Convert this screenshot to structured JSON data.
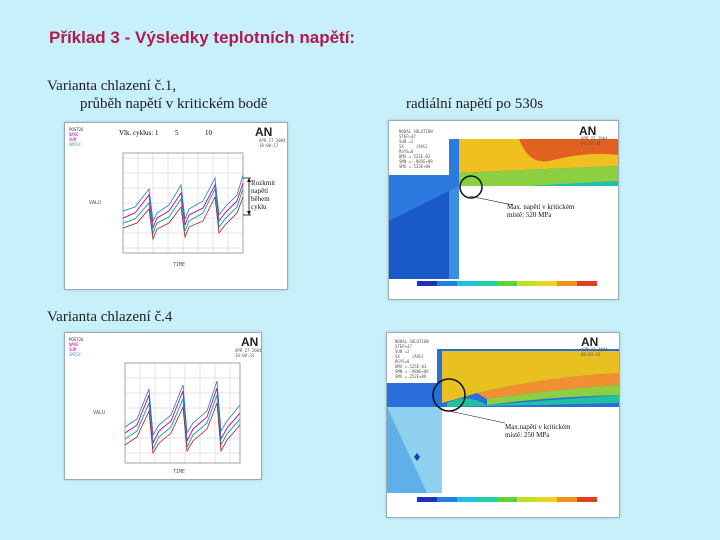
{
  "slide": {
    "title": "Příklad 3 - Výsledky teplotních napětí:",
    "variant1_line1": "Varianta chlazení č.1,",
    "variant1_line2": "průběh napětí v kritickém bodě",
    "radial_label": "radiální napětí po 530s",
    "variant4": "Varianta chlazení č.4"
  },
  "chart_top": {
    "cycle_label": "Vlk. cyklus: 1",
    "cycle_5": "5",
    "cycle_10": "10",
    "logo": "AN",
    "xlabel": "TIME",
    "ylabel": "VALU",
    "annotation_lines": [
      "Rozkmit",
      "napětí",
      "během",
      "cyklu"
    ]
  },
  "chart_bottom": {
    "logo": "AN",
    "xlabel": "TIME",
    "ylabel": "VALU"
  },
  "fem_top": {
    "logo": "AN",
    "max_note_line1": "Max. napětí v kritickém",
    "max_note_line2": "místě: 520 MPa"
  },
  "fem_bottom": {
    "logo": "AN",
    "max_note_line1": "Max.napětí v kritickém",
    "max_note_line2": "místě: 250 MPa"
  },
  "colors": {
    "title": "#b01a4e",
    "background": "#c8f0fa"
  }
}
